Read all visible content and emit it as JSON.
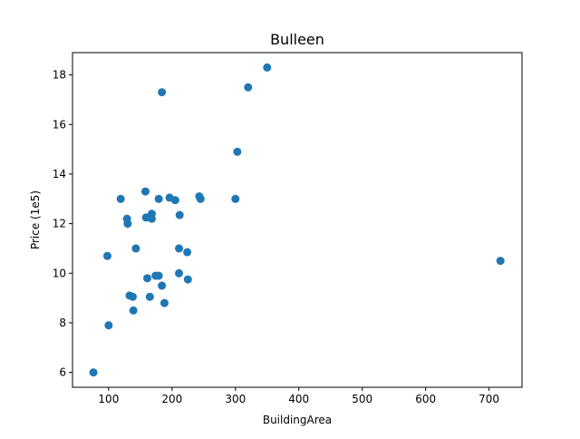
{
  "chart_data": {
    "type": "scatter",
    "title": "Bulleen",
    "xlabel": "BuildingArea",
    "ylabel": "Price (1e5)",
    "xlim": [
      43,
      752
    ],
    "ylim": [
      5.4,
      18.9
    ],
    "xticks": [
      100,
      200,
      300,
      400,
      500,
      600,
      700
    ],
    "yticks": [
      6,
      8,
      10,
      12,
      14,
      16,
      18
    ],
    "grid": false,
    "marker_color": "#1f77b4",
    "points": [
      {
        "x": 76,
        "y": 6.0
      },
      {
        "x": 98,
        "y": 10.7
      },
      {
        "x": 100,
        "y": 7.9
      },
      {
        "x": 119,
        "y": 13.0
      },
      {
        "x": 129,
        "y": 12.2
      },
      {
        "x": 130,
        "y": 12.0
      },
      {
        "x": 133,
        "y": 9.1
      },
      {
        "x": 138,
        "y": 9.05
      },
      {
        "x": 139,
        "y": 8.5
      },
      {
        "x": 143,
        "y": 11.0
      },
      {
        "x": 158,
        "y": 13.3
      },
      {
        "x": 159,
        "y": 12.25
      },
      {
        "x": 161,
        "y": 9.8
      },
      {
        "x": 165,
        "y": 9.05
      },
      {
        "x": 168,
        "y": 12.2
      },
      {
        "x": 168,
        "y": 12.4
      },
      {
        "x": 174,
        "y": 9.9
      },
      {
        "x": 179,
        "y": 13.0
      },
      {
        "x": 179,
        "y": 9.9
      },
      {
        "x": 184,
        "y": 17.3
      },
      {
        "x": 184,
        "y": 9.5
      },
      {
        "x": 188,
        "y": 8.8
      },
      {
        "x": 196,
        "y": 13.05
      },
      {
        "x": 205,
        "y": 12.95
      },
      {
        "x": 211,
        "y": 11.0
      },
      {
        "x": 211,
        "y": 10.0
      },
      {
        "x": 212,
        "y": 12.35
      },
      {
        "x": 224,
        "y": 10.85
      },
      {
        "x": 225,
        "y": 9.75
      },
      {
        "x": 243,
        "y": 13.1
      },
      {
        "x": 245,
        "y": 13.0
      },
      {
        "x": 300,
        "y": 13.0
      },
      {
        "x": 303,
        "y": 14.9
      },
      {
        "x": 320,
        "y": 17.5
      },
      {
        "x": 350,
        "y": 18.3
      },
      {
        "x": 718,
        "y": 10.5
      }
    ]
  }
}
